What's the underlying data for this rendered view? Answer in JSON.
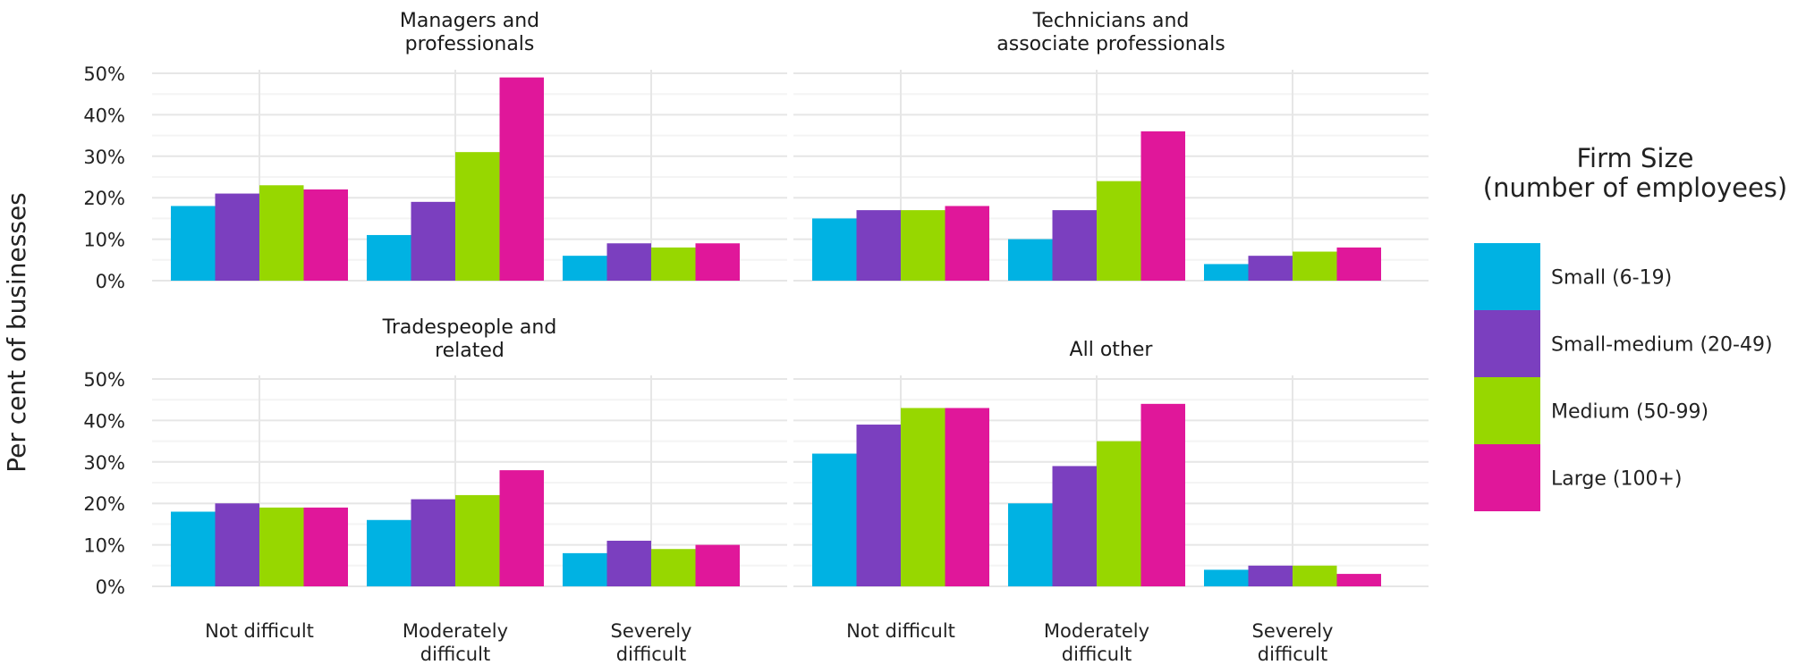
{
  "chart_data": {
    "type": "bar",
    "ylabel": "Per cent of businesses",
    "ylim": [
      0,
      50
    ],
    "yticks": [
      0,
      10,
      20,
      30,
      40,
      50
    ],
    "ytick_suffix": "%",
    "grid": true,
    "legend_position": "right",
    "legend": {
      "title_lines": [
        "Firm Size",
        "(number of employees)"
      ]
    },
    "categories": [
      "Not difficult",
      "Moderately difficult",
      "Severely difficult"
    ],
    "category_lines": [
      [
        "Not difficult"
      ],
      [
        "Moderately",
        "difficult"
      ],
      [
        "Severely",
        "difficult"
      ]
    ],
    "series": [
      {
        "name": "Small (6-19)",
        "color": "#00b2e3"
      },
      {
        "name": "Small-medium (20-49)",
        "color": "#7b3fbf"
      },
      {
        "name": "Medium (50-99)",
        "color": "#97d700"
      },
      {
        "name": "Large (100+)",
        "color": "#e0179a"
      }
    ],
    "facets": [
      {
        "title_lines": [
          "Managers and",
          "professionals"
        ],
        "values": [
          [
            18,
            11,
            6
          ],
          [
            21,
            19,
            9
          ],
          [
            23,
            31,
            8
          ],
          [
            22,
            49,
            9
          ]
        ]
      },
      {
        "title_lines": [
          "Technicians and",
          "associate professionals"
        ],
        "values": [
          [
            15,
            10,
            4
          ],
          [
            17,
            17,
            6
          ],
          [
            17,
            24,
            7
          ],
          [
            18,
            36,
            8
          ]
        ]
      },
      {
        "title_lines": [
          "Tradespeople and",
          "related"
        ],
        "values": [
          [
            18,
            16,
            8
          ],
          [
            20,
            21,
            11
          ],
          [
            19,
            22,
            9
          ],
          [
            19,
            28,
            10
          ]
        ]
      },
      {
        "title_lines": [
          "All other"
        ],
        "values": [
          [
            32,
            20,
            4
          ],
          [
            39,
            29,
            5
          ],
          [
            43,
            35,
            5
          ],
          [
            43,
            44,
            3
          ]
        ]
      }
    ]
  }
}
